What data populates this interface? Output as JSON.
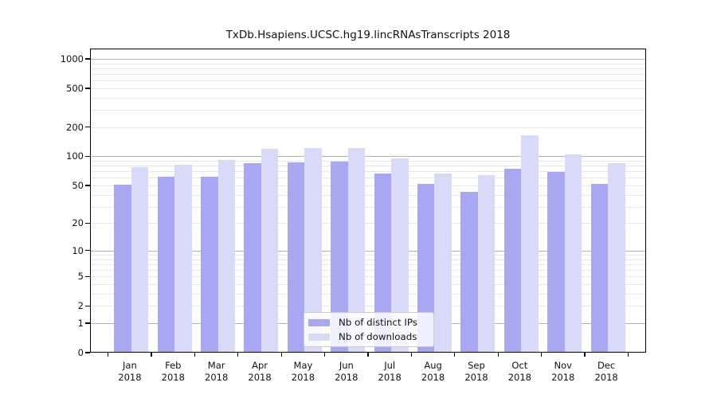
{
  "title": "TxDb.Hsapiens.UCSC.hg19.lincRNAsTranscripts 2018",
  "colors": {
    "ips_bar": "#a7a7f2",
    "downloads_bar": "#d9d9f8",
    "major_grid": "#b2b2b2",
    "minor_grid": "#e7e7e7",
    "spine": "#000000",
    "legend_border": "#cccccc"
  },
  "legend": {
    "items": [
      {
        "label": "Nb of distinct IPs",
        "series_key": "ips"
      },
      {
        "label": "Nb of downloads",
        "series_key": "downloads"
      }
    ]
  },
  "chart_data": {
    "type": "bar",
    "title": "TxDb.Hsapiens.UCSC.hg19.lincRNAsTranscripts 2018",
    "categories": [
      "Jan",
      "Feb",
      "Mar",
      "Apr",
      "May",
      "Jun",
      "Jul",
      "Aug",
      "Sep",
      "Oct",
      "Nov",
      "Dec"
    ],
    "year_label": "2018",
    "series": [
      {
        "name": "Nb of distinct IPs",
        "color": "#a7a7f2",
        "values": [
          51,
          62,
          62,
          85,
          86,
          88,
          66,
          52,
          43,
          75,
          69,
          52
        ]
      },
      {
        "name": "Nb of downloads",
        "color": "#d9d9f8",
        "values": [
          77,
          82,
          92,
          120,
          123,
          121,
          95,
          67,
          64,
          165,
          105,
          85
        ]
      }
    ],
    "xlabel": "",
    "ylabel": "",
    "yscale": "log10(1+value)",
    "yticks": [
      1000,
      500,
      200,
      100,
      50,
      20,
      10,
      5,
      2,
      1,
      0
    ],
    "ylim": [
      0,
      1280
    ],
    "grid": "horizontal; dark lines at decades (1,10,100,1000), faint lines at 2-9 per decade",
    "legend_position": "inside bottom-center"
  }
}
